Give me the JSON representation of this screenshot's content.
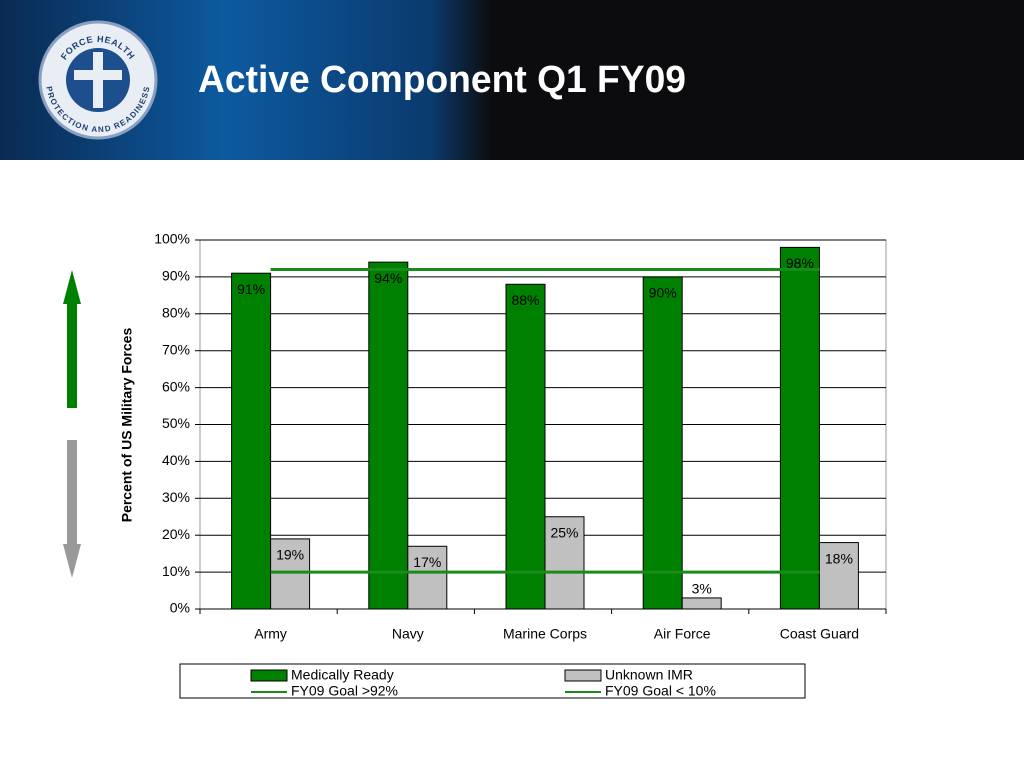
{
  "header": {
    "title": "Active Component Q1 FY09",
    "logo": {
      "top": "FORCE HEALTH",
      "bottom": "PROTECTION AND READINESS"
    }
  },
  "chart_data": {
    "type": "bar",
    "y_label": "Percent of US Military Forces",
    "categories": [
      "Army",
      "Navy",
      "Marine Corps",
      "Air Force",
      "Coast Guard"
    ],
    "series": [
      {
        "name": "Medically Ready",
        "color": "#008000",
        "values": [
          91,
          94,
          88,
          90,
          98
        ],
        "value_labels": [
          "91%",
          "94%",
          "88%",
          "90%",
          "98%"
        ]
      },
      {
        "name": "Unknown IMR",
        "color": "#c0c0c0",
        "values": [
          19,
          17,
          25,
          3,
          18
        ],
        "value_labels": [
          "19%",
          "17%",
          "25%",
          "3%",
          "18%"
        ]
      },
      {
        "name": "FY09 Goal >92%",
        "color": "#188c18",
        "type": "line",
        "values": [
          92,
          92,
          92,
          92,
          92
        ]
      },
      {
        "name": "FY09 Goal < 10%",
        "color": "#188c18",
        "type": "line",
        "values": [
          10,
          10,
          10,
          10,
          10
        ]
      }
    ],
    "ylim": [
      0,
      100
    ],
    "yticks": [
      {
        "value": 0,
        "label": "0%"
      },
      {
        "value": 10,
        "label": "10%"
      },
      {
        "value": 20,
        "label": "20%"
      },
      {
        "value": 30,
        "label": "30%"
      },
      {
        "value": 40,
        "label": "40%"
      },
      {
        "value": 50,
        "label": "50%"
      },
      {
        "value": 60,
        "label": "60%"
      },
      {
        "value": 70,
        "label": "70%"
      },
      {
        "value": 80,
        "label": "80%"
      },
      {
        "value": 90,
        "label": "90%"
      },
      {
        "value": 100,
        "label": "100%"
      }
    ],
    "grid": true,
    "legend": "bottom"
  }
}
